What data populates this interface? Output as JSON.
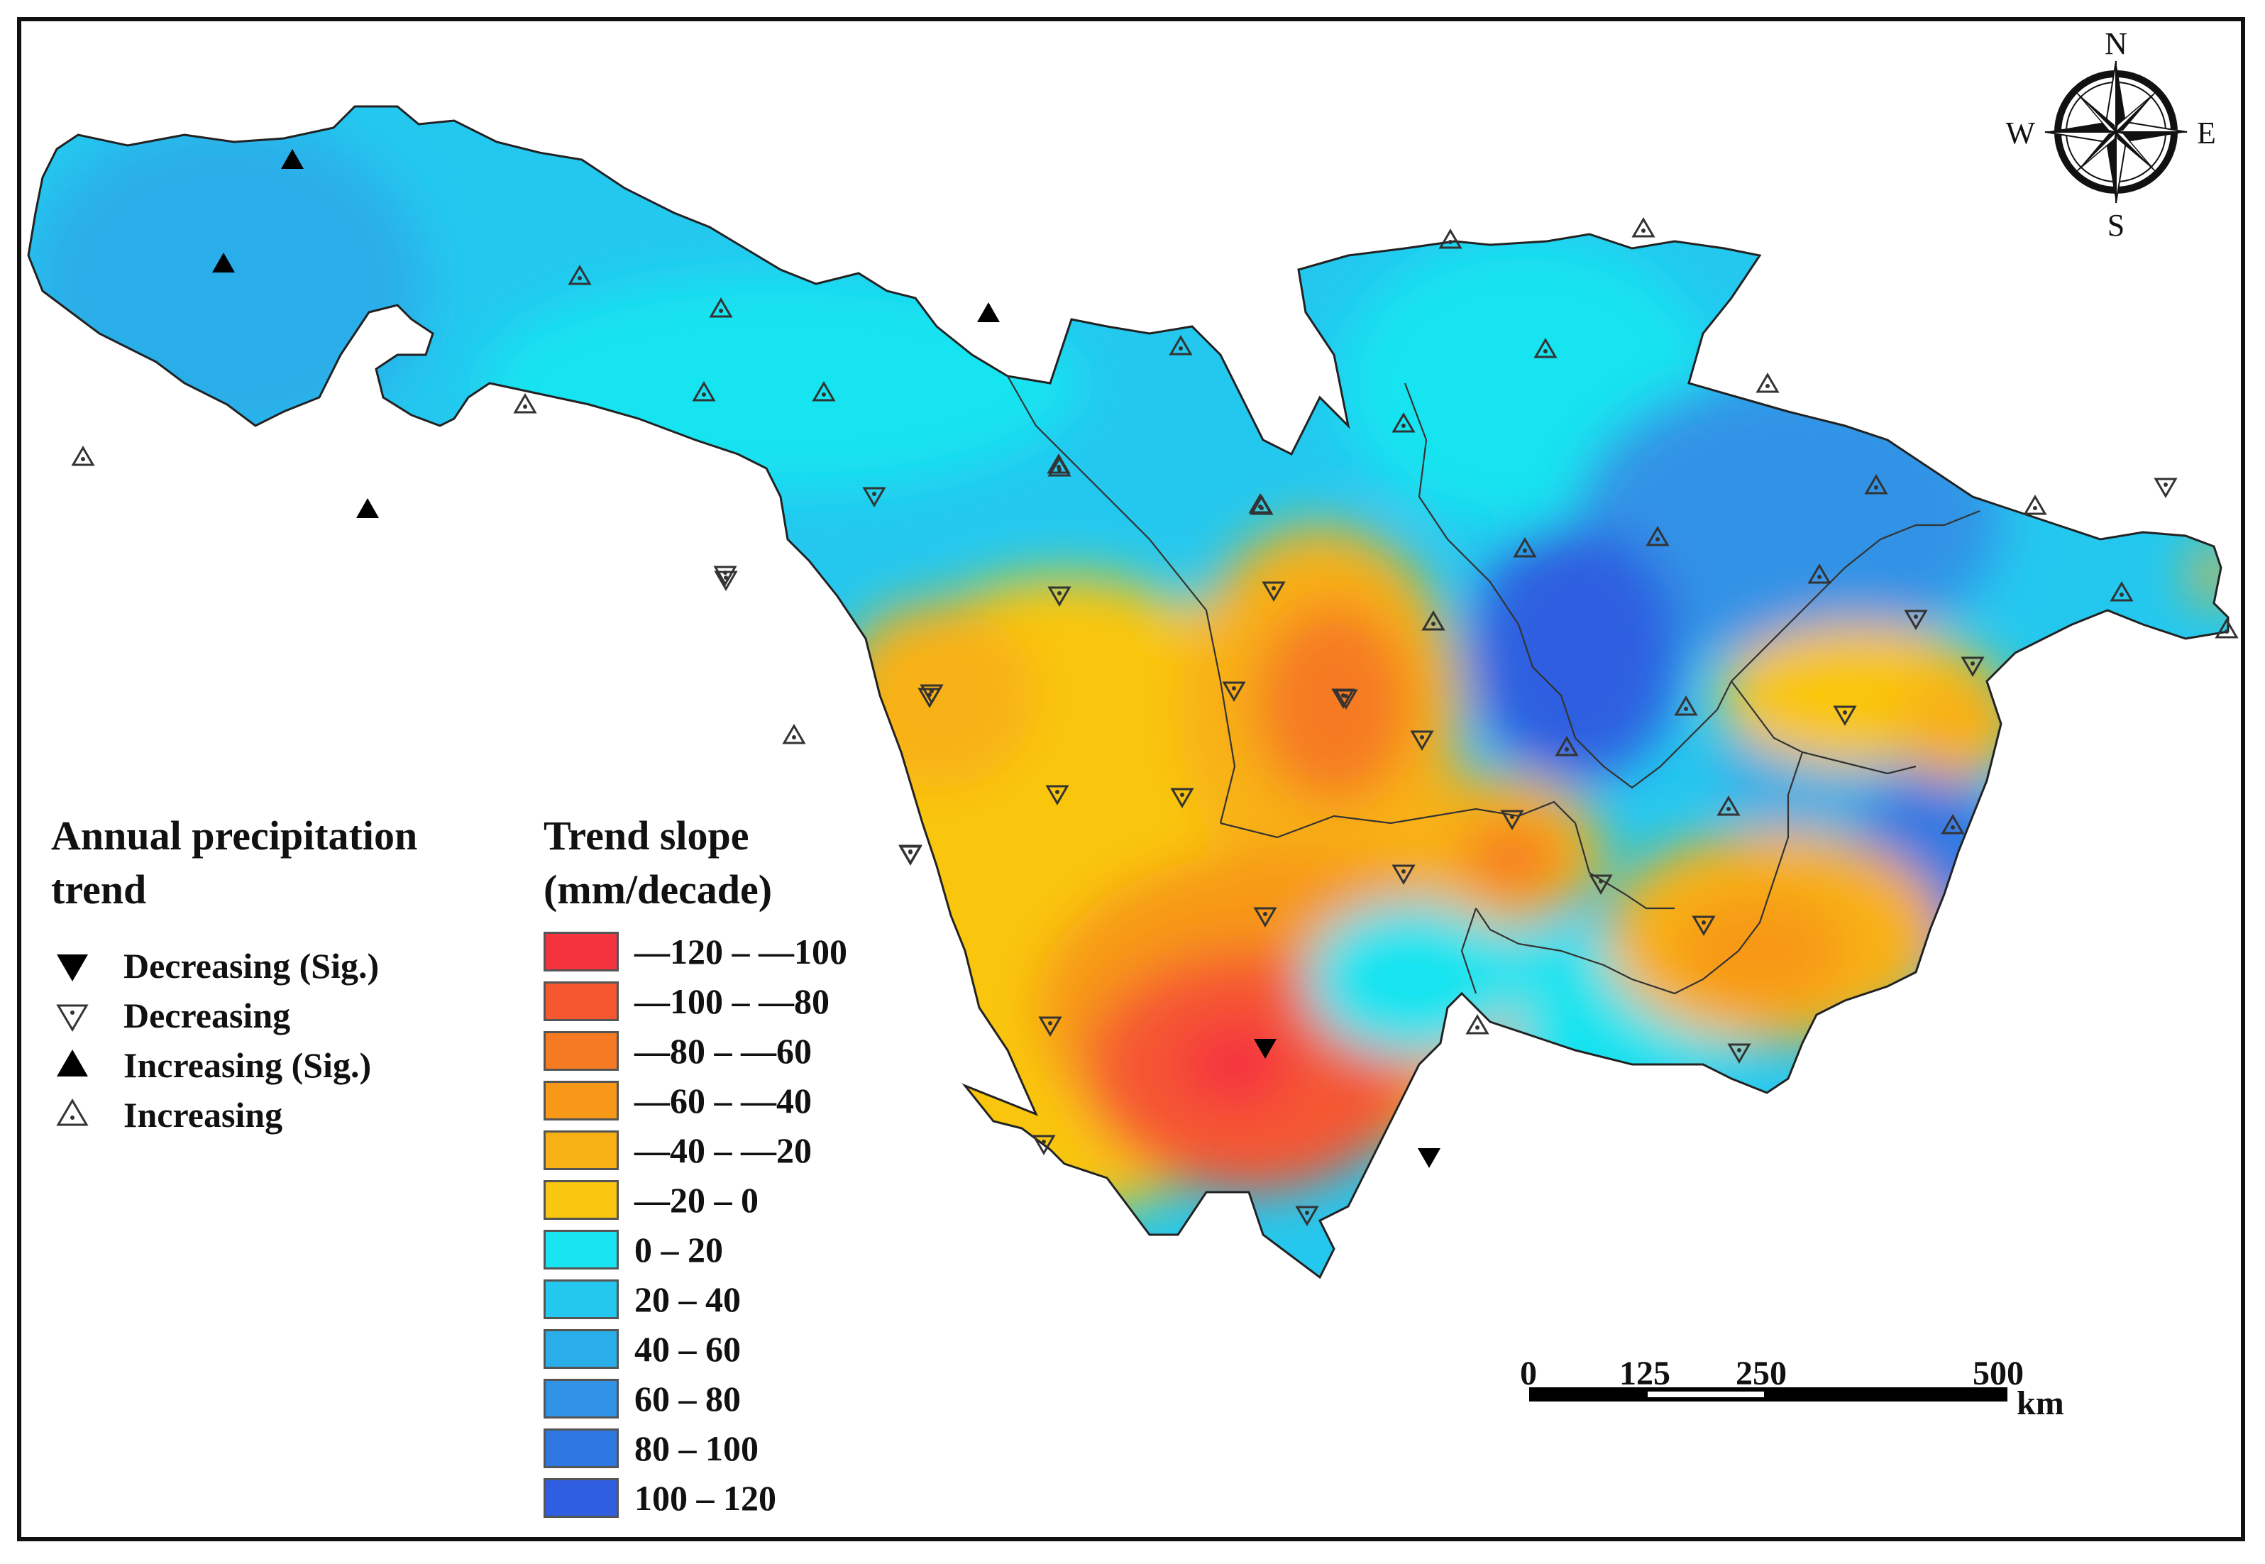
{
  "trend_legend": {
    "title_line1": "Annual precipitation",
    "title_line2": "trend",
    "items": [
      {
        "symbol": "triangle-down-filled",
        "label": "Decreasing (Sig.)"
      },
      {
        "symbol": "triangle-down-open",
        "label": "Decreasing"
      },
      {
        "symbol": "triangle-up-filled",
        "label": "Increasing (Sig.)"
      },
      {
        "symbol": "triangle-up-open",
        "label": "Increasing"
      }
    ]
  },
  "slope_legend": {
    "title_line1": "Trend slope",
    "title_line2": "(mm/decade)",
    "bins": [
      {
        "label": "—120 – —100",
        "color": "#f5333f"
      },
      {
        "label": "—100 – —80",
        "color": "#f55730"
      },
      {
        "label": "—80 – —60",
        "color": "#f67a22"
      },
      {
        "label": "—60 – —40",
        "color": "#f79818"
      },
      {
        "label": "—40 – —20",
        "color": "#f8b114"
      },
      {
        "label": "—20 – 0",
        "color": "#f9c610"
      },
      {
        "label": "0 – 20",
        "color": "#17e4f0"
      },
      {
        "label": "20 – 40",
        "color": "#24c8ef"
      },
      {
        "label": "40 – 60",
        "color": "#2aaee9"
      },
      {
        "label": "60 – 80",
        "color": "#3093e6"
      },
      {
        "label": "80 – 100",
        "color": "#2f78e3"
      },
      {
        "label": "100 – 120",
        "color": "#2f5fe0"
      }
    ]
  },
  "compass": {
    "n": "N",
    "s": "S",
    "e": "E",
    "w": "W"
  },
  "scale_bar": {
    "ticks": [
      "0",
      "125",
      "250",
      "500"
    ],
    "unit": "km"
  }
}
